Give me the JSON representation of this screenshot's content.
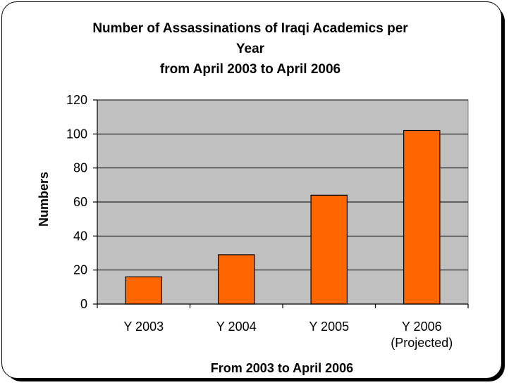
{
  "chart_data": {
    "type": "bar",
    "title_lines": [
      "Number of Assassinations of Iraqi Academics per",
      "Year",
      "from April 2003 to April 2006"
    ],
    "categories": [
      [
        "Y 2003"
      ],
      [
        "Y 2004"
      ],
      [
        "Y 2005"
      ],
      [
        "Y 2006",
        "(Projected)"
      ]
    ],
    "values": [
      16,
      29,
      64,
      102
    ],
    "xlabel": "From 2003 to April 2006",
    "ylabel": "Numbers",
    "ylim": [
      0,
      120
    ],
    "yticks": [
      "0",
      "20",
      "40",
      "60",
      "80",
      "100",
      "120"
    ],
    "grid": true,
    "legend": "none",
    "colors": {
      "bar": "#ff6600",
      "bar_border": "#000000",
      "plot_background": "#c0c0c0",
      "gridline": "#000000"
    }
  }
}
